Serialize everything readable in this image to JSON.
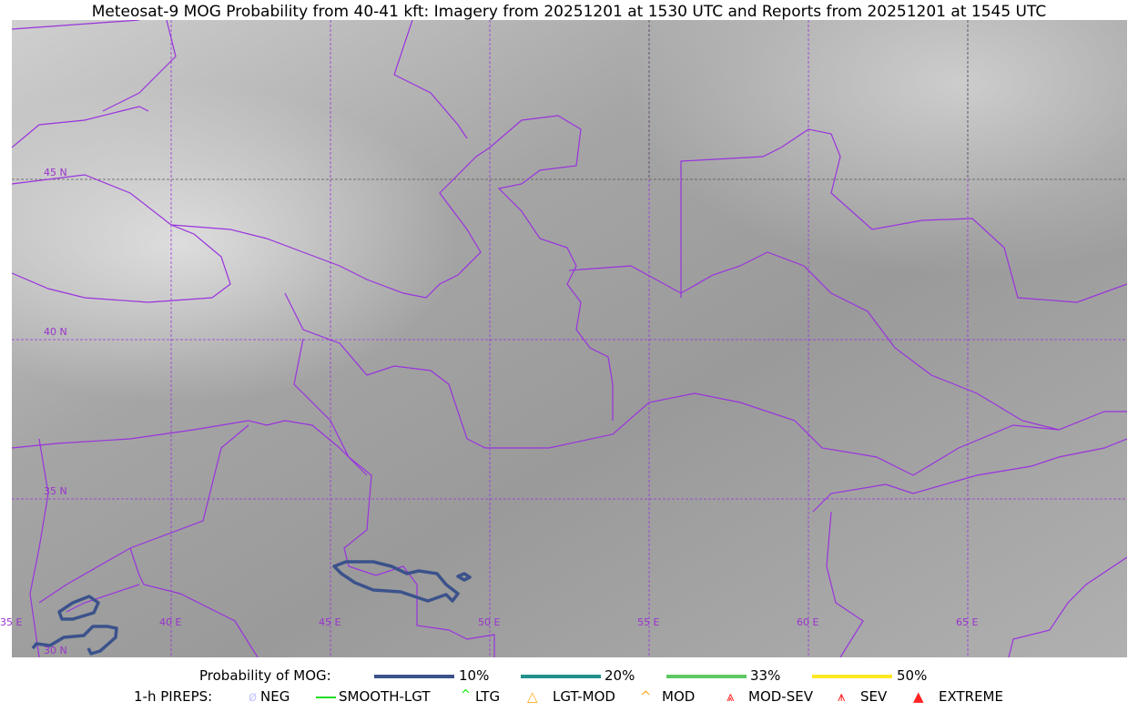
{
  "title": "Meteosat-9 MOG Probability from 40-41 kft: Imagery from 20251201 at 1530 UTC and Reports from 20251201 at 1545 UTC",
  "map": {
    "lon_labels": [
      "35 E",
      "40 E",
      "45 E",
      "50 E",
      "55 E",
      "60 E",
      "65 E"
    ],
    "lat_labels": [
      "45 N",
      "40 N",
      "35 N",
      "30 N"
    ],
    "border_color": "#9933dd",
    "contour_color_10": "#3b528b"
  },
  "legend": {
    "prob_title": "Probability of MOG:",
    "prob": [
      {
        "label": "10%",
        "color": "#3b528b"
      },
      {
        "label": "20%",
        "color": "#21918c"
      },
      {
        "label": "33%",
        "color": "#5ec962"
      },
      {
        "label": "50%",
        "color": "#fde725"
      }
    ],
    "pirep_title": "1-h PIREPS:",
    "pireps": [
      {
        "label": "NEG",
        "color": "#c8c8ff"
      },
      {
        "label": "SMOOTH-LGT",
        "color": "#22dd22"
      },
      {
        "label": "LTG",
        "color": "#00ee00"
      },
      {
        "label": "LGT-MOD",
        "color": "#ffaa22"
      },
      {
        "label": "MOD",
        "color": "#ffaa22"
      },
      {
        "label": "MOD-SEV",
        "color": "#ff2222"
      },
      {
        "label": "SEV",
        "color": "#ff2222"
      },
      {
        "label": "EXTREME",
        "color": "#ff2222"
      }
    ]
  }
}
